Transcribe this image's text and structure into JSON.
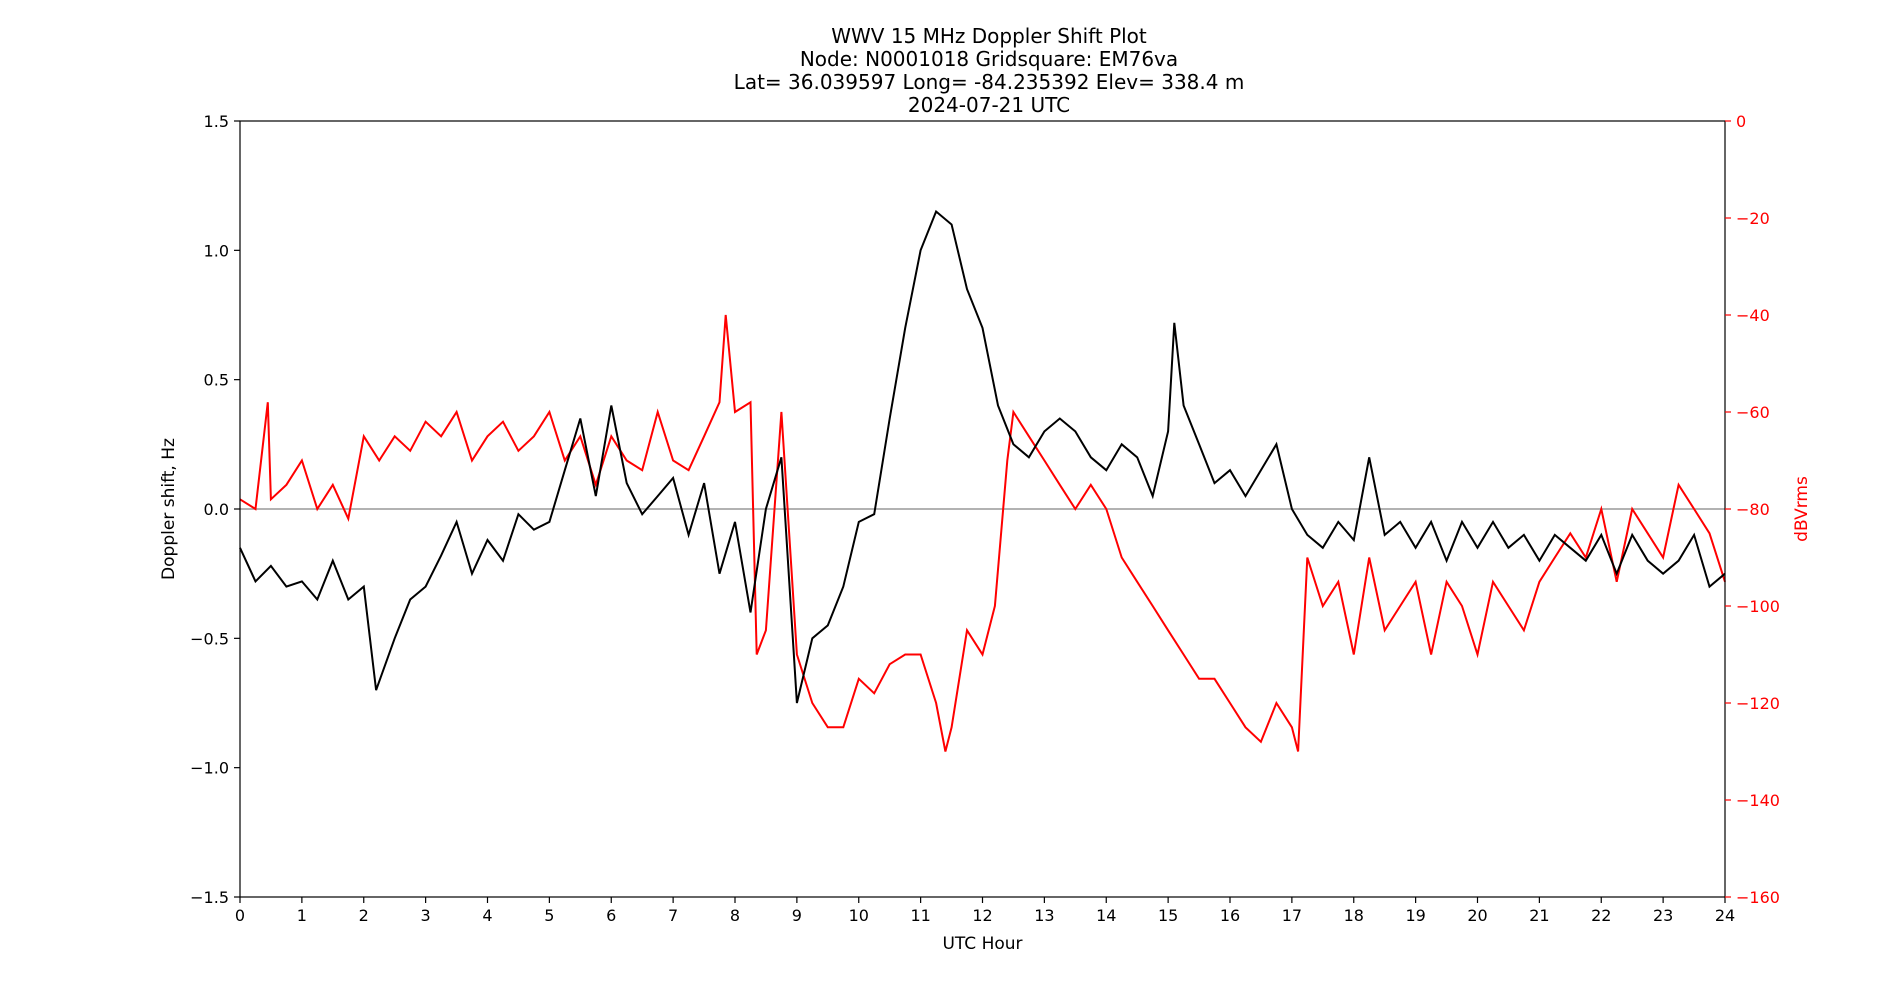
{
  "chart_data": {
    "type": "line",
    "title_lines": [
      "WWV 15 MHz Doppler Shift Plot",
      "Node:  N0001018     Gridsquare:  EM76va",
      "Lat= 36.039597    Long= -84.235392    Elev= 338.4 m",
      "2024-07-21  UTC"
    ],
    "xlabel": "UTC Hour",
    "ylabel_left": "Doppler shift, Hz",
    "ylabel_right": "dBVrms",
    "xlim": [
      0,
      24
    ],
    "ylim_left": [
      -1.5,
      1.5
    ],
    "ylim_right": [
      -160,
      0
    ],
    "x_ticks": [
      "0",
      "1",
      "2",
      "3",
      "4",
      "5",
      "6",
      "7",
      "8",
      "9",
      "10",
      "11",
      "12",
      "13",
      "14",
      "15",
      "16",
      "17",
      "18",
      "19",
      "20",
      "21",
      "22",
      "23",
      "24"
    ],
    "y_ticks_left": [
      "1.5",
      "1.0",
      "0.5",
      "0.0",
      "−0.5",
      "−1.0",
      "−1.5"
    ],
    "y_ticks_right": [
      "0",
      "−20",
      "−40",
      "−60",
      "−80",
      "−100",
      "−120",
      "−140",
      "−160"
    ],
    "zero_line": 0.0,
    "colors": {
      "doppler": "#000000",
      "power": "#ff0000",
      "zero_line": "#999999",
      "right_axis": "#ff0000"
    },
    "series": [
      {
        "axis": "left",
        "x": [
          0,
          0.25,
          0.5,
          0.75,
          1,
          1.25,
          1.5,
          1.75,
          2,
          2.2,
          2.5,
          2.75,
          3,
          3.25,
          3.5,
          3.75,
          4,
          4.25,
          4.5,
          4.75,
          5,
          5.25,
          5.5,
          5.75,
          6,
          6.25,
          6.5,
          6.75,
          7,
          7.25,
          7.5,
          7.75,
          8,
          8.25,
          8.5,
          8.75,
          9,
          9.25,
          9.5,
          9.75,
          10,
          10.25,
          10.5,
          10.75,
          11,
          11.25,
          11.5,
          11.75,
          12,
          12.25,
          12.5,
          12.75,
          13,
          13.25,
          13.5,
          13.75,
          14,
          14.25,
          14.5,
          14.75,
          15,
          15.1,
          15.25,
          15.5,
          15.75,
          16,
          16.25,
          16.5,
          16.75,
          17,
          17.25,
          17.5,
          17.75,
          18,
          18.25,
          18.5,
          18.75,
          19,
          19.25,
          19.5,
          19.75,
          20,
          20.25,
          20.5,
          20.75,
          21,
          21.25,
          21.5,
          21.75,
          22,
          22.25,
          22.5,
          22.75,
          23,
          23.25,
          23.5,
          23.75,
          24
        ],
        "values": [
          -0.15,
          -0.28,
          -0.22,
          -0.3,
          -0.28,
          -0.35,
          -0.2,
          -0.35,
          -0.3,
          -0.7,
          -0.5,
          -0.35,
          -0.3,
          -0.18,
          -0.05,
          -0.25,
          -0.12,
          -0.2,
          -0.02,
          -0.08,
          -0.05,
          0.15,
          0.35,
          0.05,
          0.4,
          0.1,
          -0.02,
          0.05,
          0.12,
          -0.1,
          0.1,
          -0.25,
          -0.05,
          -0.4,
          0.0,
          0.2,
          -0.75,
          -0.5,
          -0.45,
          -0.3,
          -0.05,
          -0.02,
          0.35,
          0.7,
          1.0,
          1.15,
          1.1,
          0.85,
          0.7,
          0.4,
          0.25,
          0.2,
          0.3,
          0.35,
          0.3,
          0.2,
          0.15,
          0.25,
          0.2,
          0.05,
          0.3,
          0.72,
          0.4,
          0.25,
          0.1,
          0.15,
          0.05,
          0.15,
          0.25,
          0.0,
          -0.1,
          -0.15,
          -0.05,
          -0.12,
          0.2,
          -0.1,
          -0.05,
          -0.15,
          -0.05,
          -0.2,
          -0.05,
          -0.15,
          -0.05,
          -0.15,
          -0.1,
          -0.2,
          -0.1,
          -0.15,
          -0.2,
          -0.1,
          -0.25,
          -0.1,
          -0.2,
          -0.25,
          -0.2,
          -0.1,
          -0.3,
          -0.25
        ]
      },
      {
        "axis": "right",
        "x": [
          0,
          0.25,
          0.45,
          0.5,
          0.75,
          1,
          1.25,
          1.5,
          1.75,
          2,
          2.25,
          2.5,
          2.75,
          3,
          3.25,
          3.5,
          3.75,
          4,
          4.25,
          4.5,
          4.75,
          5,
          5.25,
          5.5,
          5.75,
          6,
          6.25,
          6.5,
          6.75,
          7,
          7.25,
          7.5,
          7.75,
          7.85,
          8,
          8.25,
          8.35,
          8.5,
          8.75,
          9,
          9.25,
          9.5,
          9.75,
          10,
          10.25,
          10.5,
          10.75,
          11,
          11.25,
          11.4,
          11.5,
          11.75,
          12,
          12.2,
          12.4,
          12.5,
          12.75,
          13,
          13.25,
          13.5,
          13.75,
          14,
          14.25,
          14.5,
          14.75,
          15,
          15.25,
          15.5,
          15.75,
          16,
          16.25,
          16.5,
          16.75,
          17,
          17.1,
          17.25,
          17.5,
          17.75,
          18,
          18.25,
          18.5,
          18.75,
          19,
          19.25,
          19.5,
          19.75,
          20,
          20.25,
          20.5,
          20.75,
          21,
          21.25,
          21.5,
          21.75,
          22,
          22.25,
          22.5,
          22.75,
          23,
          23.25,
          23.5,
          23.75,
          24
        ],
        "values": [
          -78,
          -80,
          -58,
          -78,
          -75,
          -70,
          -80,
          -75,
          -82,
          -65,
          -70,
          -65,
          -68,
          -62,
          -65,
          -60,
          -70,
          -65,
          -62,
          -68,
          -65,
          -60,
          -70,
          -65,
          -75,
          -65,
          -70,
          -72,
          -60,
          -70,
          -72,
          -65,
          -58,
          -40,
          -60,
          -58,
          -110,
          -105,
          -60,
          -110,
          -120,
          -125,
          -125,
          -115,
          -118,
          -112,
          -110,
          -110,
          -120,
          -130,
          -125,
          -105,
          -110,
          -100,
          -70,
          -60,
          -65,
          -70,
          -75,
          -80,
          -75,
          -80,
          -90,
          -95,
          -100,
          -105,
          -110,
          -115,
          -115,
          -120,
          -125,
          -128,
          -120,
          -125,
          -130,
          -90,
          -100,
          -95,
          -110,
          -90,
          -105,
          -100,
          -95,
          -110,
          -95,
          -100,
          -110,
          -95,
          -100,
          -105,
          -95,
          -90,
          -85,
          -90,
          -80,
          -95,
          -80,
          -85,
          -90,
          -75,
          -80,
          -85,
          -95
        ]
      }
    ]
  }
}
